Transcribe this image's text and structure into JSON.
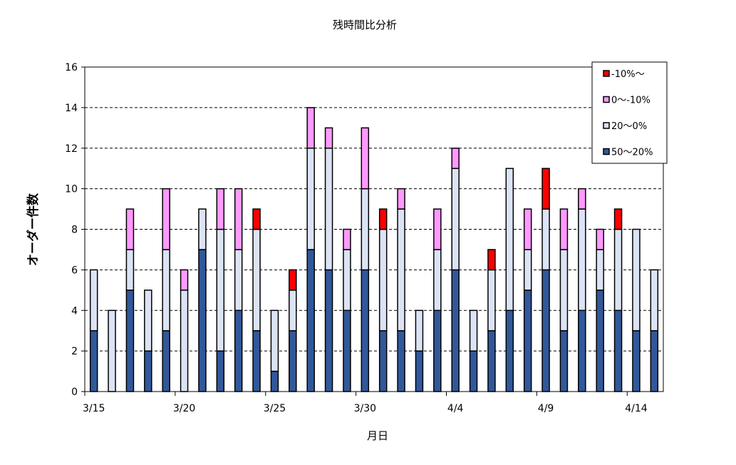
{
  "chart_data": {
    "type": "bar",
    "stacked": true,
    "title": "残時間比分析",
    "xlabel": "月日",
    "ylabel": "オーダー件数",
    "ylim": [
      0,
      16
    ],
    "yticks": [
      0,
      2,
      4,
      6,
      8,
      10,
      12,
      14,
      16
    ],
    "grid": true,
    "legend_position": "top-right",
    "categories": [
      "3/15",
      "3/16",
      "3/17",
      "3/18",
      "3/19",
      "3/20",
      "3/21",
      "3/22",
      "3/23",
      "3/24",
      "3/25",
      "3/26",
      "3/27",
      "3/28",
      "3/29",
      "3/30",
      "3/31",
      "4/1",
      "4/2",
      "4/3",
      "4/4",
      "4/5",
      "4/6",
      "4/7",
      "4/8",
      "4/9",
      "4/10",
      "4/11",
      "4/12",
      "4/13",
      "4/14",
      "4/15"
    ],
    "xtick_labels": [
      "3/15",
      "3/20",
      "3/25",
      "3/30",
      "4/4",
      "4/9",
      "4/14"
    ],
    "series": [
      {
        "name": "50〜20%",
        "color": "#31589a",
        "values": [
          3,
          0,
          5,
          2,
          3,
          0,
          7,
          2,
          4,
          3,
          1,
          3,
          7,
          6,
          4,
          6,
          3,
          3,
          2,
          4,
          6,
          2,
          3,
          4,
          5,
          6,
          3,
          4,
          5,
          4,
          3,
          3
        ]
      },
      {
        "name": "20〜0%",
        "color": "#dbe3f4",
        "values": [
          3,
          4,
          2,
          3,
          4,
          5,
          2,
          6,
          3,
          5,
          3,
          2,
          5,
          6,
          3,
          4,
          5,
          6,
          2,
          3,
          5,
          2,
          3,
          7,
          2,
          3,
          4,
          5,
          2,
          4,
          5,
          3
        ]
      },
      {
        "name": "0〜-10%",
        "color": "#ff99ff",
        "values": [
          0,
          0,
          2,
          0,
          3,
          1,
          0,
          2,
          3,
          0,
          0,
          0,
          2,
          1,
          1,
          3,
          0,
          1,
          0,
          2,
          1,
          0,
          0,
          0,
          2,
          0,
          2,
          1,
          1,
          0,
          0,
          0
        ]
      },
      {
        "name": "-10%〜",
        "color": "#ff0000",
        "values": [
          0,
          0,
          0,
          0,
          0,
          0,
          0,
          0,
          0,
          1,
          0,
          1,
          0,
          0,
          0,
          0,
          1,
          0,
          0,
          0,
          0,
          0,
          1,
          0,
          0,
          2,
          0,
          0,
          0,
          1,
          0,
          0
        ]
      }
    ]
  }
}
